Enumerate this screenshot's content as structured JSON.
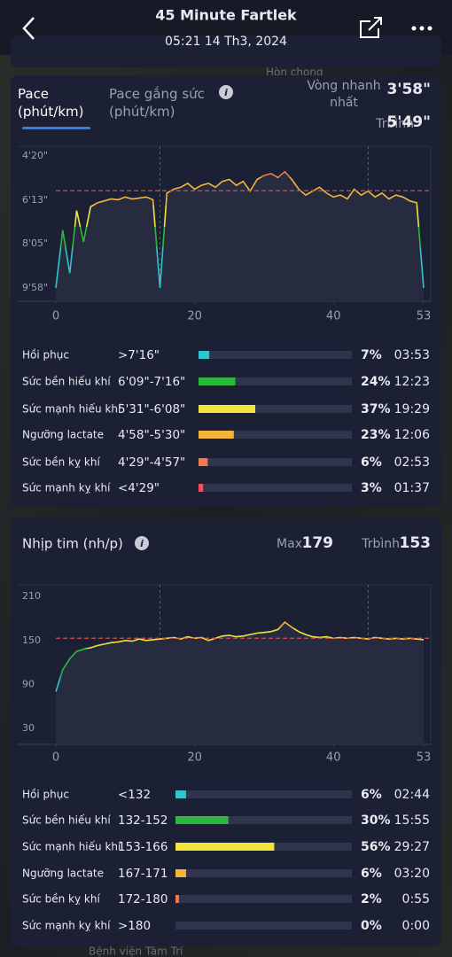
{
  "header": {
    "title": "45 Minute Fartlek",
    "subtitle": "05:21 14 Th3, 2024"
  },
  "map_labels": [
    "Hòn chong",
    "Bệnh viện Tâm Trí"
  ],
  "cards": [
    {
      "tabs": [
        "Pace (phút/km)",
        "Pace gắng sức (phút/km)"
      ],
      "stats": [
        {
          "label": "Vòng nhanh nhất",
          "value": "3'58\""
        },
        {
          "label": "Trbình",
          "value": "5'49\""
        }
      ],
      "chart": {
        "type": "line",
        "inverted": true,
        "x": [
          0,
          1,
          2,
          3,
          4,
          5,
          6,
          7,
          8,
          9,
          10,
          11,
          12,
          13,
          14,
          15,
          16,
          17,
          18,
          19,
          20,
          21,
          22,
          23,
          24,
          25,
          26,
          27,
          28,
          29,
          30,
          31,
          32,
          33,
          34,
          35,
          36,
          37,
          38,
          39,
          40,
          41,
          42,
          43,
          44,
          45,
          46,
          47,
          48,
          49,
          50,
          51,
          52,
          53
        ],
        "values": [
          598,
          450,
          560,
          400,
          480,
          390,
          380,
          375,
          370,
          372,
          365,
          370,
          368,
          365,
          372,
          598,
          355,
          345,
          340,
          330,
          345,
          335,
          330,
          340,
          325,
          320,
          335,
          325,
          350,
          320,
          310,
          305,
          315,
          300,
          320,
          345,
          360,
          350,
          340,
          355,
          365,
          360,
          370,
          345,
          360,
          350,
          365,
          355,
          370,
          360,
          365,
          375,
          380,
          598
        ],
        "average": 349,
        "markers": [
          15,
          45
        ],
        "xlim": [
          0,
          53
        ],
        "xticks": [
          0,
          20,
          40,
          53
        ],
        "ylim": [
          235,
          632
        ],
        "yticks": [
          {
            "value": 260,
            "label": "4'20\""
          },
          {
            "value": 373,
            "label": "6'13\""
          },
          {
            "value": 485,
            "label": "8'05\""
          },
          {
            "value": 598,
            "label": "9'58\""
          }
        ]
      },
      "zones": [
        {
          "name": "Hồi phục",
          "range": ">7'16\"",
          "percent": 7,
          "percent_label": "7%",
          "time": "03:53",
          "color": "#2ec6cc"
        },
        {
          "name": "Sức bền hiếu khí",
          "range": "6'09\"-7'16\"",
          "percent": 24,
          "percent_label": "24%",
          "time": "12:23",
          "color": "#2cb83d"
        },
        {
          "name": "Sức mạnh hiếu khí",
          "range": "5'31\"-6'08\"",
          "percent": 37,
          "percent_label": "37%",
          "time": "19:29",
          "color": "#f2e43a"
        },
        {
          "name": "Ngưỡng lactate",
          "range": "4'58\"-5'30\"",
          "percent": 23,
          "percent_label": "23%",
          "time": "12:06",
          "color": "#f2b53a"
        },
        {
          "name": "Sức bền kỵ khí",
          "range": "4'29\"-4'57\"",
          "percent": 6,
          "percent_label": "6%",
          "time": "02:53",
          "color": "#f27a4a"
        },
        {
          "name": "Sức mạnh kỵ khí",
          "range": "<4'29\"",
          "percent": 3,
          "percent_label": "3%",
          "time": "01:37",
          "color": "#f25060"
        }
      ]
    },
    {
      "tabs": [
        "Nhịp tim (nh/p)"
      ],
      "stats": [
        {
          "label": "Max",
          "value": "179"
        },
        {
          "label": "Trbình",
          "value": "153"
        }
      ],
      "chart": {
        "type": "line",
        "inverted": false,
        "x": [
          0,
          1,
          2,
          3,
          4,
          5,
          6,
          7,
          8,
          9,
          10,
          11,
          12,
          13,
          14,
          15,
          16,
          17,
          18,
          19,
          20,
          21,
          22,
          23,
          24,
          25,
          26,
          27,
          28,
          29,
          30,
          31,
          32,
          33,
          34,
          35,
          36,
          37,
          38,
          39,
          40,
          41,
          42,
          43,
          44,
          45,
          46,
          47,
          48,
          49,
          50,
          51,
          52,
          53
        ],
        "values": [
          80,
          110,
          125,
          135,
          138,
          140,
          143,
          145,
          147,
          148,
          150,
          149,
          152,
          150,
          151,
          152,
          153,
          154,
          152,
          155,
          153,
          154,
          150,
          153,
          156,
          157,
          155,
          156,
          158,
          160,
          161,
          162,
          165,
          175,
          168,
          162,
          158,
          155,
          154,
          155,
          153,
          154,
          153,
          154,
          153,
          152,
          154,
          153,
          152,
          153,
          152,
          153,
          152,
          151
        ],
        "average": 153,
        "markers": [
          15,
          45
        ],
        "xlim": [
          0,
          53
        ],
        "xticks": [
          0,
          20,
          40,
          53
        ],
        "ylim": [
          8,
          226
        ],
        "yticks": [
          210,
          150,
          90,
          30
        ]
      },
      "zones": [
        {
          "name": "Hồi phục",
          "range": "<132",
          "percent": 6,
          "percent_label": "6%",
          "time": "02:44",
          "color": "#2ec6cc"
        },
        {
          "name": "Sức bền hiếu khí",
          "range": "132-152",
          "percent": 30,
          "percent_label": "30%",
          "time": "15:55",
          "color": "#2cb83d"
        },
        {
          "name": "Sức mạnh hiếu khí",
          "range": "153-166",
          "percent": 56,
          "percent_label": "56%",
          "time": "29:27",
          "color": "#f2e43a"
        },
        {
          "name": "Ngưỡng lactate",
          "range": "167-171",
          "percent": 6,
          "percent_label": "6%",
          "time": "03:20",
          "color": "#f2b53a"
        },
        {
          "name": "Sức bền kỵ khí",
          "range": "172-180",
          "percent": 2,
          "percent_label": "2%",
          "time": "0:55",
          "color": "#f27a4a"
        },
        {
          "name": "Sức mạnh kỵ khí",
          "range": ">180",
          "percent": 0,
          "percent_label": "0%",
          "time": "0:00",
          "color": "#f25060"
        }
      ]
    }
  ]
}
